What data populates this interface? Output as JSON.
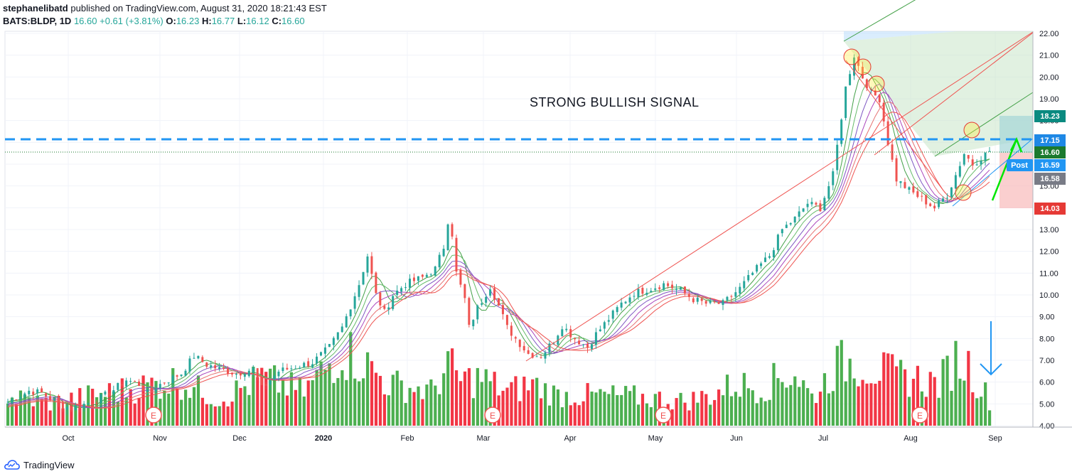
{
  "header": {
    "publisher": "stephanelibatd",
    "published_text": "published on TradingView.com, August 31, 2020 18:21:43 EST",
    "symbol": "BATS:BLDP, 1D",
    "last": "16.60",
    "change": "+0.61 (+3.81%)",
    "o_label": "O:",
    "o_val": "16.23",
    "h_label": "H:",
    "h_val": "16.77",
    "l_label": "L:",
    "l_val": "16.12",
    "c_label": "C:",
    "c_val": "16.60"
  },
  "annotation_text": "STRONG BULLISH SIGNAL",
  "footer": {
    "brand": "TradingView"
  },
  "colors": {
    "up": "#26a69a",
    "down": "#ef5350",
    "vol_up": "#4caf50",
    "vol_down": "#f23645",
    "blue_line": "#2196f3",
    "arrow_green": "#00e600"
  },
  "price_badges": [
    {
      "label": "18.23",
      "color": "#0a8a80"
    },
    {
      "label": "17.15",
      "color": "#1e88e5"
    },
    {
      "label": "16.60",
      "color": "#1b7a2e"
    },
    {
      "label": "16.59",
      "color": "#2196f3",
      "tag": "Post"
    },
    {
      "label": "16.58",
      "color": "#787b86"
    },
    {
      "label": "14.03",
      "color": "#e53935"
    }
  ],
  "earnings_label": "E",
  "chart_data": {
    "type": "candlestick",
    "y_ticks": [
      "22.00",
      "21.00",
      "20.00",
      "19.00",
      "18.00",
      "17.00",
      "16.00",
      "15.00",
      "14.00",
      "13.00",
      "12.00",
      "11.00",
      "10.00",
      "9.00",
      "8.00",
      "7.00",
      "6.00",
      "5.00",
      "4.00"
    ],
    "ylim": [
      4,
      22
    ],
    "x_labels": [
      "Oct",
      "Nov",
      "Dec",
      "2020",
      "Feb",
      "Mar",
      "Apr",
      "May",
      "Jun",
      "Jul",
      "Aug",
      "Sep"
    ],
    "horizontal_level": 17.15,
    "last_price": 16.6,
    "price_path": [
      [
        0,
        5.1
      ],
      [
        5,
        5.6
      ],
      [
        8,
        5.5
      ],
      [
        12,
        5.0
      ],
      [
        15,
        4.8
      ],
      [
        20,
        5.1
      ],
      [
        24,
        5.5
      ],
      [
        28,
        6.1
      ],
      [
        31,
        5.9
      ],
      [
        33,
        5.5
      ],
      [
        36,
        5.9
      ],
      [
        41,
        6.4
      ],
      [
        44,
        7.2
      ],
      [
        47,
        6.8
      ],
      [
        50,
        6.6
      ],
      [
        54,
        6.4
      ],
      [
        58,
        6.6
      ],
      [
        60,
        5.7
      ],
      [
        64,
        6.5
      ],
      [
        68,
        6.7
      ],
      [
        72,
        6.9
      ],
      [
        76,
        7.6
      ],
      [
        79,
        8.5
      ],
      [
        83,
        10.5
      ],
      [
        85,
        11.8
      ],
      [
        87,
        10.0
      ],
      [
        89,
        9.2
      ],
      [
        91,
        10.0
      ],
      [
        94,
        10.5
      ],
      [
        98,
        10.8
      ],
      [
        101,
        11.2
      ],
      [
        103,
        12.2
      ],
      [
        104,
        13.4
      ],
      [
        105,
        12.8
      ],
      [
        106,
        11.0
      ],
      [
        108,
        9.8
      ],
      [
        109,
        8.5
      ],
      [
        111,
        9.4
      ],
      [
        114,
        10.4
      ],
      [
        116,
        9.5
      ],
      [
        118,
        8.5
      ],
      [
        120,
        8.0
      ],
      [
        123,
        7.3
      ],
      [
        126,
        7.2
      ],
      [
        129,
        7.9
      ],
      [
        131,
        8.6
      ],
      [
        134,
        8.0
      ],
      [
        137,
        7.6
      ],
      [
        139,
        8.2
      ],
      [
        142,
        8.9
      ],
      [
        145,
        9.6
      ],
      [
        148,
        10.1
      ],
      [
        152,
        10.3
      ],
      [
        155,
        10.5
      ],
      [
        159,
        10.2
      ],
      [
        162,
        9.8
      ],
      [
        165,
        9.6
      ],
      [
        169,
        9.6
      ],
      [
        173,
        10.3
      ],
      [
        176,
        11.0
      ],
      [
        180,
        11.8
      ],
      [
        183,
        13.0
      ],
      [
        186,
        13.5
      ],
      [
        189,
        14.2
      ],
      [
        192,
        14.0
      ],
      [
        195,
        15.5
      ],
      [
        198,
        19.5
      ],
      [
        200,
        21.0
      ],
      [
        202,
        20.0
      ],
      [
        204,
        19.3
      ],
      [
        206,
        19.0
      ],
      [
        208,
        17.0
      ],
      [
        210,
        15.3
      ],
      [
        213,
        14.8
      ],
      [
        216,
        14.4
      ],
      [
        219,
        14.0
      ],
      [
        222,
        14.6
      ],
      [
        224,
        15.5
      ],
      [
        226,
        16.5
      ],
      [
        228,
        16.0
      ],
      [
        230,
        16.3
      ],
      [
        232,
        16.6
      ]
    ],
    "volume_path": [
      [
        0,
        1.5
      ],
      [
        10,
        1.2
      ],
      [
        20,
        1.6
      ],
      [
        30,
        2.0
      ],
      [
        40,
        2.4
      ],
      [
        50,
        1.4
      ],
      [
        60,
        2.5
      ],
      [
        70,
        1.8
      ],
      [
        79,
        4.0
      ],
      [
        83,
        3.5
      ],
      [
        86,
        3.0
      ],
      [
        90,
        2.2
      ],
      [
        96,
        2.0
      ],
      [
        100,
        1.8
      ],
      [
        104,
        3.2
      ],
      [
        107,
        2.4
      ],
      [
        112,
        2.5
      ],
      [
        118,
        1.8
      ],
      [
        124,
        2.2
      ],
      [
        130,
        1.6
      ],
      [
        140,
        1.6
      ],
      [
        150,
        1.5
      ],
      [
        160,
        1.3
      ],
      [
        166,
        1.6
      ],
      [
        172,
        2.2
      ],
      [
        178,
        2.0
      ],
      [
        183,
        2.6
      ],
      [
        186,
        2.8
      ],
      [
        190,
        1.5
      ],
      [
        196,
        3.2
      ],
      [
        200,
        3.4
      ],
      [
        205,
        3.0
      ],
      [
        210,
        2.6
      ],
      [
        215,
        2.5
      ],
      [
        220,
        2.2
      ],
      [
        224,
        3.5
      ],
      [
        227,
        3.2
      ],
      [
        230,
        2.0
      ],
      [
        232,
        1.4
      ]
    ]
  }
}
